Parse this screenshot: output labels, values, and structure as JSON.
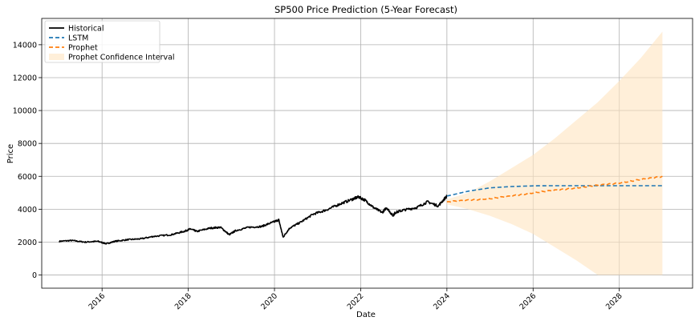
{
  "chart_data": {
    "type": "line",
    "title": "SP500 Price Prediction (5-Year Forecast)",
    "xlabel": "Date",
    "ylabel": "Price",
    "xlim": [
      2014.6,
      2029.7
    ],
    "ylim": [
      -800,
      15600
    ],
    "x_ticks": [
      2016,
      2018,
      2020,
      2022,
      2024,
      2026,
      2028
    ],
    "x_tick_labels": [
      "2016",
      "2018",
      "2020",
      "2022",
      "2024",
      "2026",
      "2028"
    ],
    "y_ticks": [
      0,
      2000,
      4000,
      6000,
      8000,
      10000,
      12000,
      14000
    ],
    "y_tick_labels": [
      "0",
      "2000",
      "4000",
      "6000",
      "8000",
      "10000",
      "12000",
      "14000"
    ],
    "grid": true,
    "legend_position": "top-left",
    "colors": {
      "historical": "#000000",
      "lstm": "#1f77b4",
      "prophet": "#ff7f0e",
      "confidence": "#ffe5c0"
    },
    "series": [
      {
        "name": "Historical",
        "style": "solid",
        "x": [
          2015.0,
          2015.3,
          2015.6,
          2015.9,
          2016.1,
          2016.3,
          2016.6,
          2016.9,
          2017.2,
          2017.6,
          2017.9,
          2018.05,
          2018.2,
          2018.5,
          2018.75,
          2018.95,
          2019.1,
          2019.4,
          2019.7,
          2019.95,
          2020.1,
          2020.2,
          2020.35,
          2020.6,
          2020.9,
          2021.2,
          2021.5,
          2021.8,
          2021.95,
          2022.1,
          2022.3,
          2022.5,
          2022.6,
          2022.75,
          2022.8,
          2023.0,
          2023.3,
          2023.55,
          2023.8,
          2024.0
        ],
        "y": [
          2050,
          2100,
          2000,
          2050,
          1900,
          2050,
          2150,
          2200,
          2350,
          2450,
          2650,
          2800,
          2650,
          2850,
          2900,
          2450,
          2700,
          2900,
          2950,
          3200,
          3350,
          2300,
          2850,
          3200,
          3700,
          3950,
          4300,
          4600,
          4750,
          4550,
          4100,
          3800,
          4100,
          3600,
          3800,
          3950,
          4100,
          4450,
          4200,
          4800
        ]
      },
      {
        "name": "LSTM",
        "style": "dashed",
        "x": [
          2024.0,
          2024.5,
          2025.0,
          2025.5,
          2026.0,
          2026.5,
          2027.0,
          2027.5,
          2028.0,
          2028.5,
          2029.0
        ],
        "y": [
          4800,
          5100,
          5300,
          5380,
          5420,
          5430,
          5430,
          5430,
          5430,
          5430,
          5430
        ]
      },
      {
        "name": "Prophet",
        "style": "dashed",
        "x": [
          2024.0,
          2024.5,
          2025.0,
          2025.5,
          2026.0,
          2026.5,
          2027.0,
          2027.5,
          2028.0,
          2028.5,
          2029.0
        ],
        "y": [
          4450,
          4550,
          4650,
          4800,
          5000,
          5150,
          5300,
          5450,
          5600,
          5800,
          6000
        ]
      }
    ],
    "confidence_interval": {
      "name": "Prophet Confidence Interval",
      "x": [
        2024.0,
        2024.5,
        2025.0,
        2025.5,
        2026.0,
        2026.5,
        2027.0,
        2027.5,
        2028.0,
        2028.5,
        2029.0
      ],
      "lower": [
        4300,
        4000,
        3600,
        3100,
        2500,
        1700,
        900,
        0,
        0,
        0,
        0
      ],
      "upper": [
        4600,
        5000,
        5700,
        6500,
        7300,
        8300,
        9400,
        10500,
        11800,
        13200,
        14800
      ]
    },
    "legend": [
      "Historical",
      "LSTM",
      "Prophet",
      "Prophet Confidence Interval"
    ]
  }
}
